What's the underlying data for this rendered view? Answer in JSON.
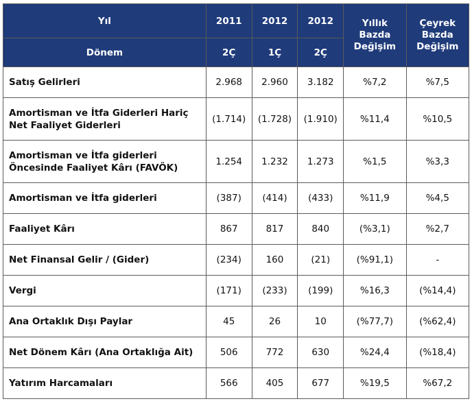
{
  "header": {
    "row1_label": "Yıl",
    "row2_label": "Dönem",
    "years": [
      "2011",
      "2012",
      "2012"
    ],
    "periods": [
      "2Ç",
      "1Ç",
      "2Ç"
    ],
    "yearly_change_label": "Yıllık Bazda Değişim",
    "quarterly_change_label": "Çeyrek Bazda Değişim"
  },
  "rows": [
    {
      "label": "Satış Gelirleri",
      "v1": "2.968",
      "v2": "2.960",
      "v3": "3.182",
      "yoy": "%7,2",
      "qoq": "%7,5"
    },
    {
      "label": "Amortisman ve İtfa Giderleri Hariç Net Faaliyet Giderleri",
      "v1": "(1.714)",
      "v2": "(1.728)",
      "v3": "(1.910)",
      "yoy": "%11,4",
      "qoq": "%10,5"
    },
    {
      "label": "Amortisman ve İtfa giderleri Öncesinde Faaliyet Kârı (FAVÖK)",
      "v1": "1.254",
      "v2": "1.232",
      "v3": "1.273",
      "yoy": "%1,5",
      "qoq": "%3,3"
    },
    {
      "label": "Amortisman ve İtfa giderleri",
      "v1": "(387)",
      "v2": "(414)",
      "v3": "(433)",
      "yoy": "%11,9",
      "qoq": "%4,5"
    },
    {
      "label": "Faaliyet Kârı",
      "v1": "867",
      "v2": "817",
      "v3": "840",
      "yoy": "(%3,1)",
      "qoq": "%2,7"
    },
    {
      "label": "Net Finansal Gelir / (Gider)",
      "v1": "(234)",
      "v2": "160",
      "v3": "(21)",
      "yoy": "(%91,1)",
      "qoq": "-"
    },
    {
      "label": "Vergi",
      "v1": "(171)",
      "v2": "(233)",
      "v3": "(199)",
      "yoy": "%16,3",
      "qoq": "(%14,4)"
    },
    {
      "label": "Ana Ortaklık Dışı Paylar",
      "v1": "45",
      "v2": "26",
      "v3": "10",
      "yoy": "(%77,7)",
      "qoq": "(%62,4)"
    },
    {
      "label": "Net Dönem Kârı (Ana Ortaklığa Ait)",
      "v1": "506",
      "v2": "772",
      "v3": "630",
      "yoy": "%24,4",
      "qoq": "(%18,4)"
    },
    {
      "label": "Yatırım Harcamaları",
      "v1": "566",
      "v2": "405",
      "v3": "677",
      "yoy": "%19,5",
      "qoq": "%67,2"
    }
  ]
}
